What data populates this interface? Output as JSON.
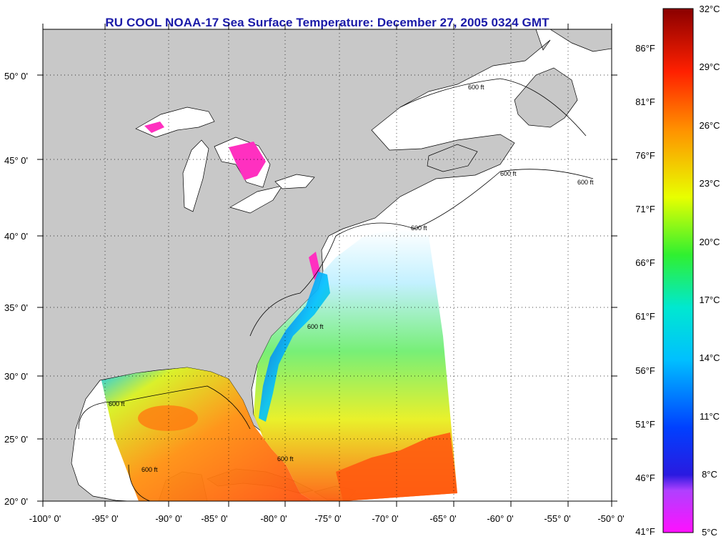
{
  "title": "RU COOL  NOAA-17  Sea Surface Temperature:  December 27, 2005 0324 GMT",
  "map": {
    "lat_labels": [
      "50° 0'",
      "45° 0'",
      "40° 0'",
      "35° 0'",
      "30° 0'",
      "25° 0'",
      "20° 0'"
    ],
    "lon_labels": [
      "-100° 0'",
      "-95° 0'",
      "-90° 0'",
      "-85° 0'",
      "-80° 0'",
      "-75° 0'",
      "-70° 0'",
      "-65° 0'",
      "-60° 0'",
      "-55° 0'",
      "-50° 0'"
    ],
    "isobath_label": "600 ft",
    "colors": {
      "land": "#c8c8c8",
      "ocean_no_data": "#ffffff",
      "title": "#1a1aa8"
    }
  },
  "colorbar": {
    "celsius_labels": [
      "32°C",
      "29°C",
      "26°C",
      "23°C",
      "20°C",
      "17°C",
      "14°C",
      "11°C",
      "8°C",
      "5°C"
    ],
    "fahrenheit_labels": [
      "86°F",
      "81°F",
      "76°F",
      "71°F",
      "66°F",
      "61°F",
      "56°F",
      "51°F",
      "46°F",
      "41°F"
    ]
  }
}
